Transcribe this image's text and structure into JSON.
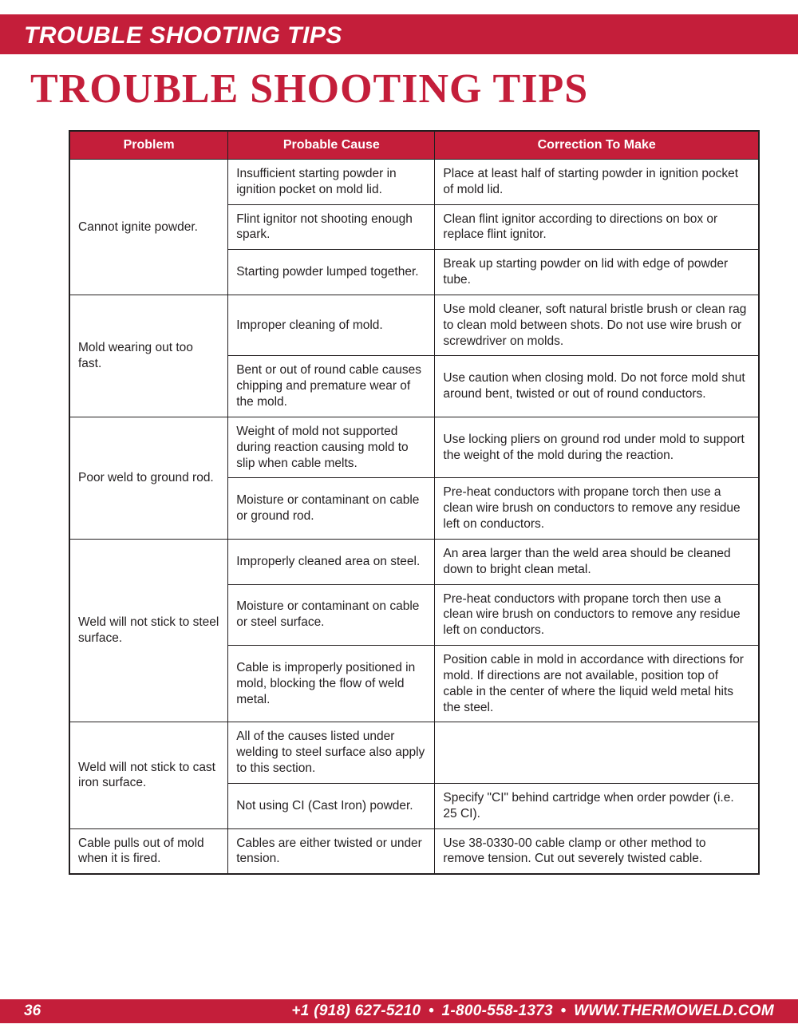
{
  "colors": {
    "brand_red": "#c41e3a",
    "text": "#231f20",
    "background": "#ffffff"
  },
  "header": {
    "bar_text": "TROUBLE SHOOTING TIPS",
    "page_title": "TROUBLE SHOOTING TIPS"
  },
  "table": {
    "columns": [
      "Problem",
      "Probable Cause",
      "Correction To Make"
    ],
    "column_widths_pct": [
      23,
      30,
      47
    ],
    "groups": [
      {
        "problem": "Cannot ignite powder.",
        "rows": [
          {
            "cause": "Insufficient starting powder in ignition pocket on mold lid.",
            "correction": "Place at least half of starting powder in ignition pocket of mold lid."
          },
          {
            "cause": "Flint ignitor not shooting enough spark.",
            "correction": "Clean flint ignitor according to directions on box or replace flint ignitor."
          },
          {
            "cause": "Starting powder lumped together.",
            "correction": "Break up starting powder on lid with edge of powder tube."
          }
        ]
      },
      {
        "problem": "Mold wearing out too fast.",
        "rows": [
          {
            "cause": "Improper cleaning of mold.",
            "correction": "Use mold cleaner, soft natural bristle brush or clean rag to clean mold between shots.  Do not use wire brush or screwdriver on molds."
          },
          {
            "cause": "Bent or out of round cable causes chipping and premature wear of the mold.",
            "correction": "Use caution when closing mold.  Do not force mold shut around bent, twisted or out of round conductors."
          }
        ]
      },
      {
        "problem": "Poor weld to ground rod.",
        "rows": [
          {
            "cause": "Weight of mold not supported during reaction causing mold to slip when cable melts.",
            "correction": "Use locking pliers on ground rod under mold to support the weight of the mold during the reaction."
          },
          {
            "cause": "Moisture or contaminant on cable or ground rod.",
            "correction": "Pre-heat conductors with propane torch then use a clean wire brush on conductors to remove any residue left on conductors."
          }
        ]
      },
      {
        "problem": "Weld will not stick to steel surface.",
        "rows": [
          {
            "cause": "Improperly cleaned area on steel.",
            "correction": "An area larger than the weld area should be cleaned down to bright clean metal."
          },
          {
            "cause": "Moisture or contaminant on cable or steel surface.",
            "correction": "Pre-heat conductors with propane torch then use a clean wire brush on conductors to remove any residue left on conductors."
          },
          {
            "cause": "Cable is improperly positioned in mold, blocking the flow of weld metal.",
            "correction": "Position cable in mold in accordance with directions for mold.  If directions are not available, position top of cable in the center of where the liquid weld metal hits the steel."
          }
        ]
      },
      {
        "problem": "Weld will not stick to cast iron surface.",
        "rows": [
          {
            "cause": "All of the causes listed under welding to steel surface also apply to this section.",
            "correction": ""
          },
          {
            "cause": "Not using CI (Cast Iron) powder.",
            "correction": "Specify \"CI\" behind cartridge when order powder (i.e. 25 CI)."
          }
        ]
      },
      {
        "problem": "Cable pulls out of mold when it is fired.",
        "rows": [
          {
            "cause": "Cables are either twisted or under tension.",
            "correction": "Use 38-0330-00 cable clamp or other method to remove tension.  Cut out severely twisted cable."
          }
        ]
      }
    ]
  },
  "footer": {
    "page_number": "36",
    "phone1": "+1 (918) 627-5210",
    "phone2": "1-800-558-1373",
    "website": "WWW.THERMOWELD.COM",
    "separator": "•"
  }
}
